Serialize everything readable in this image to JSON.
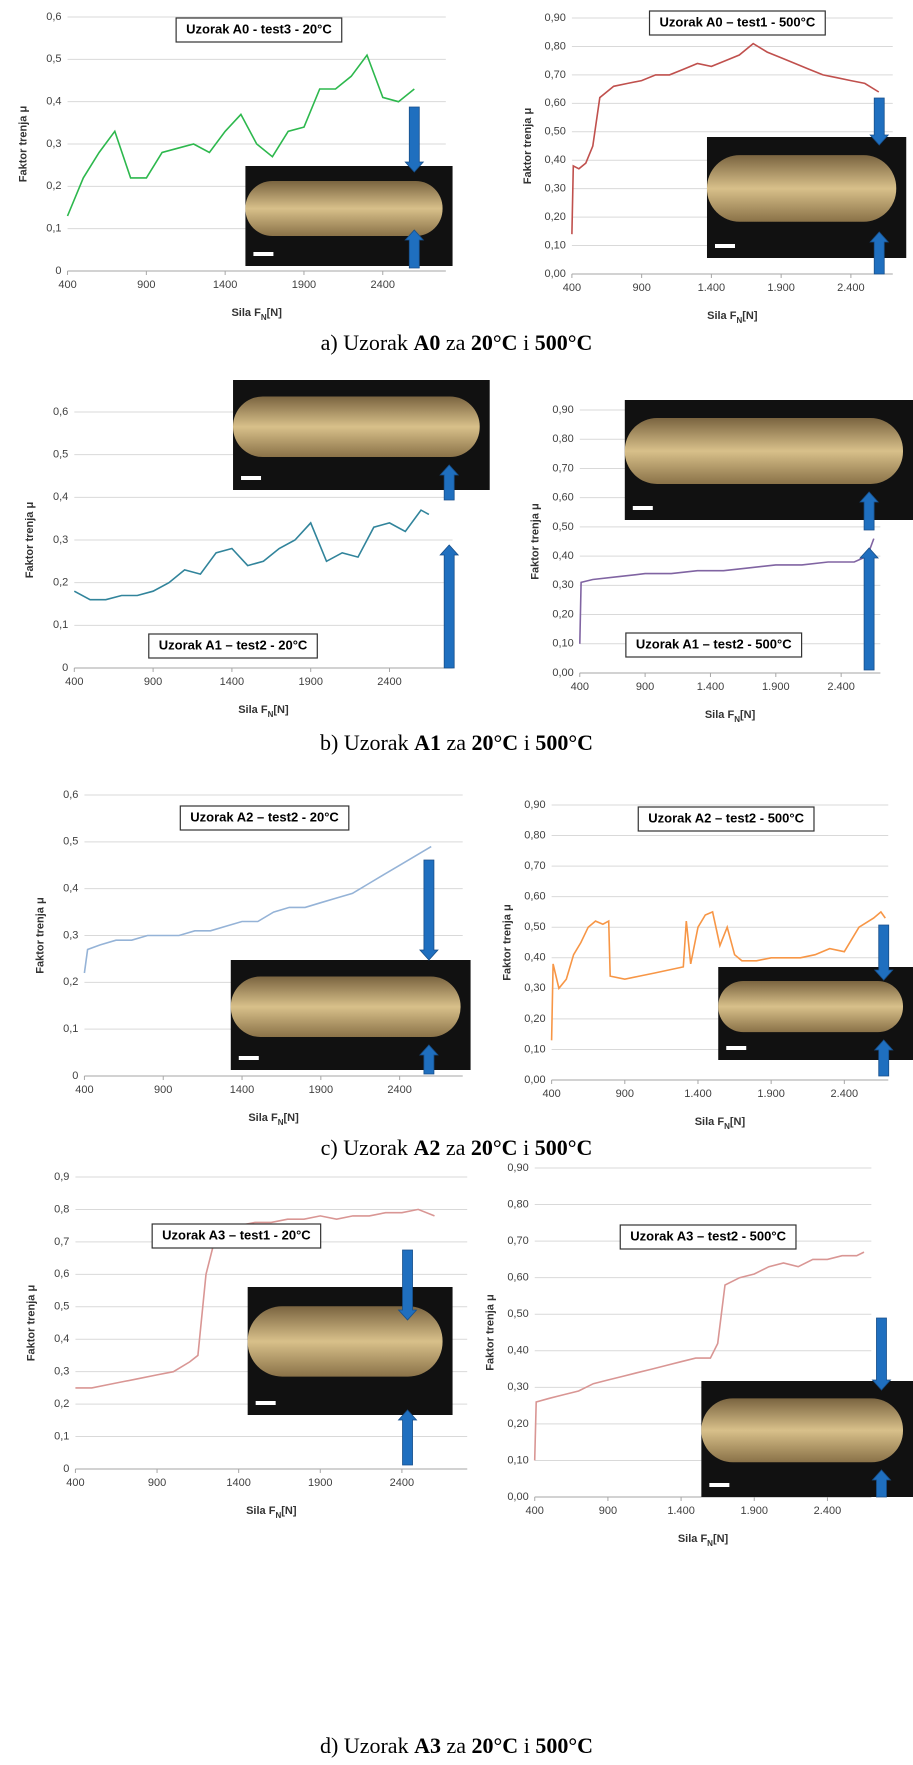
{
  "chart_data": [
    {
      "type": "line",
      "title": "Uzorak A0 - test3 - 20°C",
      "xlabel": [
        "Sila F",
        "N",
        "[N]"
      ],
      "ylabel": "Faktor trenja μ",
      "color": "#2db84d",
      "grid": true,
      "x": [
        400,
        500,
        600,
        700,
        800,
        900,
        1000,
        1100,
        1200,
        1300,
        1400,
        1500,
        1600,
        1700,
        1800,
        1900,
        2000,
        2100,
        2200,
        2300,
        2400,
        2500,
        2600
      ],
      "values": [
        0.13,
        0.22,
        0.28,
        0.33,
        0.22,
        0.22,
        0.28,
        0.29,
        0.3,
        0.28,
        0.33,
        0.37,
        0.3,
        0.27,
        0.33,
        0.34,
        0.43,
        0.43,
        0.46,
        0.51,
        0.41,
        0.4,
        0.43
      ],
      "xlim": [
        400,
        2800
      ],
      "ylim": [
        0,
        0.6
      ],
      "xticks": [
        400,
        900,
        1400,
        1900,
        2400
      ],
      "yticks": [
        0,
        {
          "value": 0.1,
          "label": "0,1"
        },
        {
          "value": 0.2,
          "label": "0,2"
        },
        {
          "value": 0.3,
          "label": "0,3"
        },
        {
          "value": 0.4,
          "label": "0,4"
        },
        {
          "value": 0.5,
          "label": "0,5"
        },
        {
          "value": 0.6,
          "label": "0,6"
        }
      ]
    },
    {
      "type": "line",
      "title": "Uzorak A0 – test1 - 500°C",
      "xlabel": [
        "Sila F",
        "N",
        "[N]"
      ],
      "ylabel": "Faktor trenja μ",
      "color": "#c0504d",
      "grid": true,
      "x": [
        400,
        410,
        450,
        500,
        550,
        600,
        700,
        800,
        900,
        1000,
        1100,
        1200,
        1300,
        1400,
        1500,
        1600,
        1700,
        1800,
        1900,
        2000,
        2100,
        2200,
        2300,
        2400,
        2500,
        2600
      ],
      "values": [
        0.14,
        0.38,
        0.37,
        0.39,
        0.45,
        0.62,
        0.66,
        0.67,
        0.68,
        0.7,
        0.7,
        0.72,
        0.74,
        0.73,
        0.75,
        0.77,
        0.81,
        0.78,
        0.76,
        0.74,
        0.72,
        0.7,
        0.69,
        0.68,
        0.67,
        0.64
      ],
      "xlim": [
        400,
        2700
      ],
      "ylim": [
        0,
        0.9
      ],
      "xticks": [
        400,
        900,
        {
          "value": 1400,
          "label": "1.400"
        },
        {
          "value": 1900,
          "label": "1.900"
        },
        {
          "value": 2400,
          "label": "2.400"
        }
      ],
      "yticks": [
        {
          "value": 0,
          "label": "0,00"
        },
        {
          "value": 0.1,
          "label": "0,10"
        },
        {
          "value": 0.2,
          "label": "0,20"
        },
        {
          "value": 0.3,
          "label": "0,30"
        },
        {
          "value": 0.4,
          "label": "0,40"
        },
        {
          "value": 0.5,
          "label": "0,50"
        },
        {
          "value": 0.6,
          "label": "0,60"
        },
        {
          "value": 0.7,
          "label": "0,70"
        },
        {
          "value": 0.8,
          "label": "0,80"
        },
        {
          "value": 0.9,
          "label": "0,90"
        }
      ]
    },
    {
      "type": "line",
      "title": "Uzorak A1 – test2 - 20°C",
      "xlabel": [
        "Sila F",
        "N",
        "[N]"
      ],
      "ylabel": "Faktor trenja μ",
      "color": "#31849b",
      "grid": true,
      "x": [
        400,
        500,
        600,
        700,
        800,
        900,
        1000,
        1100,
        1200,
        1300,
        1400,
        1500,
        1600,
        1700,
        1800,
        1900,
        2000,
        2100,
        2200,
        2300,
        2400,
        2500,
        2600,
        2650
      ],
      "values": [
        0.18,
        0.16,
        0.16,
        0.17,
        0.17,
        0.18,
        0.2,
        0.23,
        0.22,
        0.27,
        0.28,
        0.24,
        0.25,
        0.28,
        0.3,
        0.34,
        0.25,
        0.27,
        0.26,
        0.33,
        0.34,
        0.32,
        0.37,
        0.36
      ],
      "xlim": [
        400,
        2800
      ],
      "ylim": [
        0,
        0.6
      ],
      "xticks": [
        400,
        900,
        1400,
        1900,
        2400
      ],
      "yticks": [
        0,
        {
          "value": 0.1,
          "label": "0,1"
        },
        {
          "value": 0.2,
          "label": "0,2"
        },
        {
          "value": 0.3,
          "label": "0,3"
        },
        {
          "value": 0.4,
          "label": "0,4"
        },
        {
          "value": 0.5,
          "label": "0,5"
        },
        {
          "value": 0.6,
          "label": "0,6"
        }
      ]
    },
    {
      "type": "line",
      "title": "Uzorak A1 – test2 - 500°C",
      "xlabel": [
        "Sila F",
        "N",
        "[N]"
      ],
      "ylabel": "Faktor trenja μ",
      "color": "#8064a2",
      "grid": true,
      "x": [
        400,
        410,
        500,
        700,
        900,
        1100,
        1300,
        1500,
        1700,
        1900,
        2100,
        2300,
        2500,
        2600,
        2650
      ],
      "values": [
        0.1,
        0.31,
        0.32,
        0.33,
        0.34,
        0.34,
        0.35,
        0.35,
        0.36,
        0.37,
        0.37,
        0.38,
        0.38,
        0.4,
        0.46
      ],
      "xlim": [
        400,
        2700
      ],
      "ylim": [
        0,
        0.9
      ],
      "xticks": [
        400,
        900,
        {
          "value": 1400,
          "label": "1.400"
        },
        {
          "value": 1900,
          "label": "1.900"
        },
        {
          "value": 2400,
          "label": "2.400"
        }
      ],
      "yticks": [
        {
          "value": 0,
          "label": "0,00"
        },
        {
          "value": 0.1,
          "label": "0,10"
        },
        {
          "value": 0.2,
          "label": "0,20"
        },
        {
          "value": 0.3,
          "label": "0,30"
        },
        {
          "value": 0.4,
          "label": "0,40"
        },
        {
          "value": 0.5,
          "label": "0,50"
        },
        {
          "value": 0.6,
          "label": "0,60"
        },
        {
          "value": 0.7,
          "label": "0,70"
        },
        {
          "value": 0.8,
          "label": "0,80"
        },
        {
          "value": 0.9,
          "label": "0,90"
        }
      ]
    },
    {
      "type": "line",
      "title": "Uzorak A2 – test2 - 20°C",
      "xlabel": [
        "Sila F",
        "N",
        "[N]"
      ],
      "ylabel": "Faktor trenja μ",
      "color": "#95b3d7",
      "grid": true,
      "x": [
        400,
        420,
        500,
        600,
        700,
        800,
        900,
        1000,
        1100,
        1200,
        1300,
        1400,
        1500,
        1600,
        1700,
        1800,
        1900,
        2000,
        2100,
        2200,
        2300,
        2400,
        2500,
        2600
      ],
      "values": [
        0.22,
        0.27,
        0.28,
        0.29,
        0.29,
        0.3,
        0.3,
        0.3,
        0.31,
        0.31,
        0.32,
        0.33,
        0.33,
        0.35,
        0.36,
        0.36,
        0.37,
        0.38,
        0.39,
        0.41,
        0.43,
        0.45,
        0.47,
        0.49
      ],
      "xlim": [
        400,
        2800
      ],
      "ylim": [
        0,
        0.6
      ],
      "xticks": [
        400,
        900,
        1400,
        1900,
        2400
      ],
      "yticks": [
        0,
        {
          "value": 0.1,
          "label": "0,1"
        },
        {
          "value": 0.2,
          "label": "0,2"
        },
        {
          "value": 0.3,
          "label": "0,3"
        },
        {
          "value": 0.4,
          "label": "0,4"
        },
        {
          "value": 0.5,
          "label": "0,5"
        },
        {
          "value": 0.6,
          "label": "0,6"
        }
      ]
    },
    {
      "type": "line",
      "title": "Uzorak A2 – test2 - 500°C",
      "xlabel": [
        "Sila F",
        "N",
        "[N]"
      ],
      "ylabel": "Faktor trenja μ",
      "color": "#f79646",
      "grid": true,
      "x": [
        400,
        410,
        450,
        500,
        550,
        600,
        650,
        700,
        750,
        790,
        800,
        900,
        1000,
        1100,
        1200,
        1300,
        1320,
        1350,
        1400,
        1450,
        1500,
        1550,
        1600,
        1650,
        1700,
        1800,
        1900,
        2000,
        2100,
        2200,
        2300,
        2400,
        2500,
        2600,
        2650,
        2680
      ],
      "values": [
        0.13,
        0.38,
        0.3,
        0.33,
        0.41,
        0.45,
        0.5,
        0.52,
        0.51,
        0.52,
        0.34,
        0.33,
        0.34,
        0.35,
        0.36,
        0.37,
        0.52,
        0.38,
        0.5,
        0.54,
        0.55,
        0.44,
        0.5,
        0.41,
        0.39,
        0.39,
        0.4,
        0.4,
        0.4,
        0.41,
        0.43,
        0.42,
        0.5,
        0.53,
        0.55,
        0.53
      ],
      "xlim": [
        400,
        2700
      ],
      "ylim": [
        0,
        0.9
      ],
      "xticks": [
        400,
        900,
        {
          "value": 1400,
          "label": "1.400"
        },
        {
          "value": 1900,
          "label": "1.900"
        },
        {
          "value": 2400,
          "label": "2.400"
        }
      ],
      "yticks": [
        {
          "value": 0,
          "label": "0,00"
        },
        {
          "value": 0.1,
          "label": "0,10"
        },
        {
          "value": 0.2,
          "label": "0,20"
        },
        {
          "value": 0.3,
          "label": "0,30"
        },
        {
          "value": 0.4,
          "label": "0,40"
        },
        {
          "value": 0.5,
          "label": "0,50"
        },
        {
          "value": 0.6,
          "label": "0,60"
        },
        {
          "value": 0.7,
          "label": "0,70"
        },
        {
          "value": 0.8,
          "label": "0,80"
        },
        {
          "value": 0.9,
          "label": "0,90"
        }
      ]
    },
    {
      "type": "line",
      "title": "Uzorak A3 – test1 - 20°C",
      "xlabel": [
        "Sila F",
        "N",
        "[N]"
      ],
      "ylabel": "Faktor trenja μ",
      "color": "#d99694",
      "grid": true,
      "x": [
        400,
        500,
        600,
        700,
        800,
        900,
        1000,
        1100,
        1150,
        1200,
        1250,
        1300,
        1400,
        1500,
        1600,
        1700,
        1800,
        1900,
        2000,
        2100,
        2200,
        2300,
        2400,
        2500,
        2600
      ],
      "values": [
        0.25,
        0.25,
        0.26,
        0.27,
        0.28,
        0.29,
        0.3,
        0.33,
        0.35,
        0.6,
        0.7,
        0.73,
        0.75,
        0.76,
        0.76,
        0.77,
        0.77,
        0.78,
        0.77,
        0.78,
        0.78,
        0.79,
        0.79,
        0.8,
        0.78
      ],
      "xlim": [
        400,
        2800
      ],
      "ylim": [
        0,
        0.9
      ],
      "xticks": [
        400,
        900,
        1400,
        1900,
        2400
      ],
      "yticks": [
        0,
        {
          "value": 0.1,
          "label": "0,1"
        },
        {
          "value": 0.2,
          "label": "0,2"
        },
        {
          "value": 0.3,
          "label": "0,3"
        },
        {
          "value": 0.4,
          "label": "0,4"
        },
        {
          "value": 0.5,
          "label": "0,5"
        },
        {
          "value": 0.6,
          "label": "0,6"
        },
        {
          "value": 0.7,
          "label": "0,7"
        },
        {
          "value": 0.8,
          "label": "0,8"
        },
        {
          "value": 0.9,
          "label": "0,9"
        }
      ]
    },
    {
      "type": "line",
      "title": "Uzorak A3 – test2 - 500°C",
      "xlabel": [
        "Sila F",
        "N",
        "[N]"
      ],
      "ylabel": "Faktor trenja μ",
      "color": "#d99694",
      "grid": true,
      "x": [
        400,
        410,
        500,
        600,
        700,
        800,
        900,
        1000,
        1100,
        1200,
        1300,
        1400,
        1500,
        1600,
        1650,
        1700,
        1800,
        1900,
        2000,
        2100,
        2200,
        2300,
        2400,
        2500,
        2600,
        2650
      ],
      "values": [
        0.1,
        0.26,
        0.27,
        0.28,
        0.29,
        0.31,
        0.32,
        0.33,
        0.34,
        0.35,
        0.36,
        0.37,
        0.38,
        0.38,
        0.42,
        0.58,
        0.6,
        0.61,
        0.63,
        0.64,
        0.63,
        0.65,
        0.65,
        0.66,
        0.66,
        0.67
      ],
      "xlim": [
        400,
        2700
      ],
      "ylim": [
        0,
        0.9
      ],
      "xticks": [
        400,
        900,
        {
          "value": 1400,
          "label": "1.400"
        },
        {
          "value": 1900,
          "label": "1.900"
        },
        {
          "value": 2400,
          "label": "2.400"
        }
      ],
      "yticks": [
        {
          "value": 0,
          "label": "0,00"
        },
        {
          "value": 0.1,
          "label": "0,10"
        },
        {
          "value": 0.2,
          "label": "0,20"
        },
        {
          "value": 0.3,
          "label": "0,30"
        },
        {
          "value": 0.4,
          "label": "0,40"
        },
        {
          "value": 0.5,
          "label": "0,50"
        },
        {
          "value": 0.6,
          "label": "0,60"
        },
        {
          "value": 0.7,
          "label": "0,70"
        },
        {
          "value": 0.8,
          "label": "0,80"
        },
        {
          "value": 0.9,
          "label": "0,90"
        }
      ]
    }
  ],
  "captions": [
    [
      "a) Uzorak ",
      "A0",
      " za ",
      "20°C",
      " i ",
      "500°C"
    ],
    [
      "b) Uzorak ",
      "A1",
      " za ",
      "20°C",
      " i ",
      "500°C"
    ],
    [
      "c) Uzorak ",
      "A2",
      " za ",
      "20°C",
      " i ",
      "500°C"
    ],
    [
      "d) Uzorak ",
      "A3",
      " za ",
      "20°C",
      " i ",
      "500°C"
    ]
  ]
}
